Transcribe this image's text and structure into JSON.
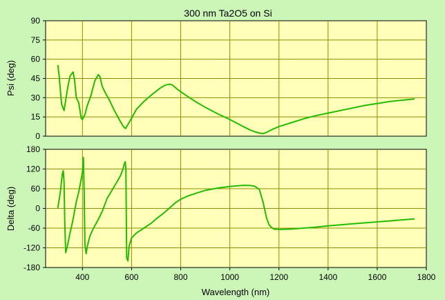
{
  "chart_data": [
    {
      "type": "line",
      "title": "300 nm Ta2O5 on Si",
      "ylabel": "Psi (deg)",
      "xlabel": "",
      "xlim": [
        250,
        1800
      ],
      "ylim": [
        0,
        90
      ],
      "xticks": [],
      "yticks": [
        "0",
        "15",
        "30",
        "45",
        "60",
        "75",
        "90"
      ],
      "grid": true,
      "series": [
        {
          "color": "#22bb00",
          "x": [
            300,
            305,
            315,
            325,
            332,
            340,
            350,
            362,
            368,
            375,
            385,
            395,
            400,
            410,
            420,
            435,
            450,
            465,
            472,
            480,
            490,
            510,
            530,
            550,
            565,
            575,
            585,
            600,
            620,
            650,
            680,
            700,
            720,
            740,
            755,
            765,
            775,
            790,
            820,
            860,
            900,
            950,
            1000,
            1050,
            1080,
            1100,
            1120,
            1135,
            1150,
            1170,
            1200,
            1250,
            1300,
            1350,
            1400,
            1450,
            1500,
            1550,
            1600,
            1650,
            1700,
            1750
          ],
          "values": [
            55,
            47,
            25,
            20,
            28,
            38,
            47,
            50,
            44,
            30,
            26,
            14,
            13,
            17,
            24,
            32,
            43,
            48,
            46,
            39,
            35,
            28,
            20,
            13,
            8,
            6,
            9,
            14,
            21,
            27,
            32,
            35,
            38,
            40,
            40.5,
            40,
            38.5,
            36,
            32,
            27,
            22.5,
            17.5,
            13,
            8,
            5,
            3.5,
            2.5,
            2,
            3,
            5,
            7.5,
            10.5,
            13.5,
            16,
            18,
            20,
            22,
            24,
            25.5,
            27,
            28,
            29
          ]
        }
      ]
    },
    {
      "type": "line",
      "title": "",
      "ylabel": "Delta (deg)",
      "xlabel": "Wavelength (nm)",
      "xlim": [
        250,
        1800
      ],
      "ylim": [
        -180,
        180
      ],
      "xticks": [
        "400",
        "600",
        "800",
        "1000",
        "1200",
        "1400",
        "1600",
        "1800"
      ],
      "yticks": [
        "-180",
        "-120",
        "-60",
        "0",
        "60",
        "120",
        "180"
      ],
      "grid": true,
      "series": [
        {
          "color": "#22bb00",
          "x": [
            300,
            310,
            318,
            322,
            325,
            328,
            332,
            340,
            348,
            360,
            375,
            385,
            395,
            400,
            404,
            407,
            410,
            415,
            420,
            430,
            445,
            460,
            480,
            500,
            520,
            540,
            555,
            565,
            570,
            574,
            577,
            580,
            585,
            590,
            600,
            620,
            650,
            680,
            700,
            730,
            760,
            780,
            800,
            830,
            870,
            900,
            950,
            1000,
            1050,
            1080,
            1100,
            1120,
            1135,
            1150,
            1160,
            1170,
            1180,
            1200,
            1250,
            1300,
            1350,
            1400,
            1450,
            1500,
            1550,
            1600,
            1650,
            1700,
            1750
          ],
          "values": [
            3,
            50,
            105,
            115,
            80,
            -40,
            -135,
            -110,
            -80,
            -40,
            20,
            50,
            90,
            110,
            155,
            50,
            -110,
            -138,
            -115,
            -85,
            -60,
            -40,
            -10,
            30,
            55,
            80,
            100,
            120,
            135,
            142,
            120,
            -150,
            -160,
            -115,
            -90,
            -75,
            -60,
            -45,
            -32,
            -15,
            5,
            18,
            28,
            38,
            48,
            55,
            62,
            67,
            70,
            70,
            68,
            58,
            20,
            -30,
            -50,
            -58,
            -63,
            -64,
            -63,
            -60,
            -57,
            -53,
            -50,
            -47,
            -44,
            -41,
            -38,
            -35,
            -32
          ]
        }
      ]
    }
  ]
}
